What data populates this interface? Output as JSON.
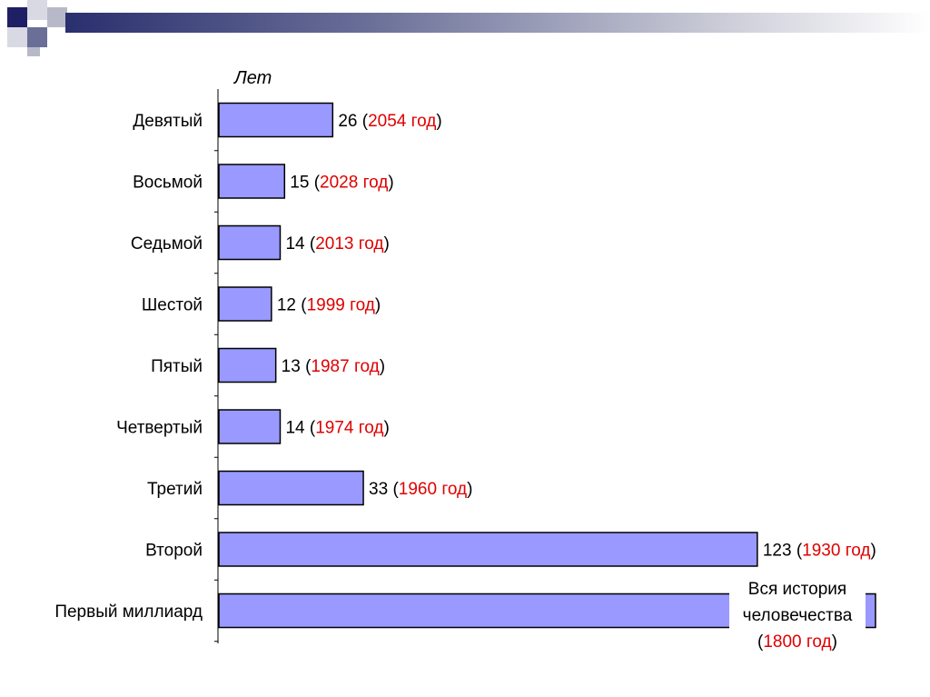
{
  "colors": {
    "bar_fill": "#9999ff",
    "bar_stroke": "#000000",
    "year_text": "#e00000",
    "label_text": "#000000",
    "header_dark": "#1f1f66",
    "header_light": "#c8c9d6"
  },
  "chart_data": {
    "type": "bar",
    "orientation": "horizontal",
    "title": "",
    "xlabel": "",
    "ylabel": "Лет",
    "grid": false,
    "legend": "none",
    "categories": [
      "Девятый",
      "Восьмой",
      "Седьмой",
      "Шестой",
      "Пятый",
      "Четвертый",
      "Третий",
      "Второй",
      "Первый миллиард"
    ],
    "values": [
      26,
      15,
      14,
      12,
      13,
      14,
      33,
      123,
      150
    ],
    "value_labels": [
      "26",
      "15",
      "14",
      "12",
      "13",
      "14",
      "33",
      "123",
      ""
    ],
    "year_labels": [
      "2054 год",
      "2028 год",
      "2013 год",
      "1999 год",
      "1987 год",
      "1974 год",
      "1960 год",
      "1930 год",
      ""
    ],
    "annotation": {
      "line1": "Вся история",
      "line2": "человечества",
      "line3": "(1800 год)",
      "year": "1800 год"
    },
    "xlim": [
      0,
      150
    ]
  }
}
